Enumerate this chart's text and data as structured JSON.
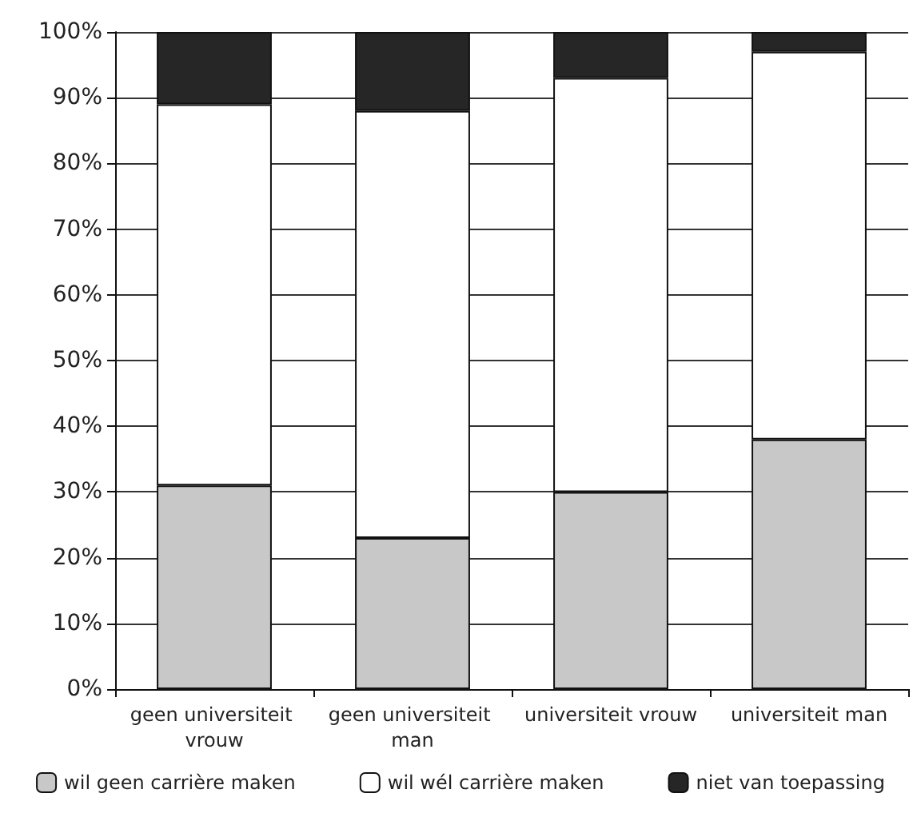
{
  "chart_data": {
    "type": "bar",
    "stacked": true,
    "categories": [
      "geen universiteit vrouw",
      "geen universiteit man",
      "universiteit vrouw",
      "universiteit man"
    ],
    "series": [
      {
        "name": "wil geen carrière maken",
        "color": "#c8c8c8",
        "values": [
          31,
          23,
          30,
          38
        ]
      },
      {
        "name": "wil wél carrière maken",
        "color": "#ffffff",
        "values": [
          58,
          65,
          63,
          59
        ]
      },
      {
        "name": "niet van toepassing",
        "color": "#262626",
        "values": [
          11,
          12,
          7,
          3
        ]
      }
    ],
    "ylim": [
      0,
      100
    ],
    "yticks": [
      {
        "value": 0,
        "label": "0%"
      },
      {
        "value": 10,
        "label": "10%"
      },
      {
        "value": 20,
        "label": "20%"
      },
      {
        "value": 30,
        "label": "30%"
      },
      {
        "value": 40,
        "label": "40%"
      },
      {
        "value": 50,
        "label": "50%"
      },
      {
        "value": 60,
        "label": "60%"
      },
      {
        "value": 70,
        "label": "70%"
      },
      {
        "value": 80,
        "label": "80%"
      },
      {
        "value": 90,
        "label": "90%"
      },
      {
        "value": 100,
        "label": "100%"
      }
    ],
    "grid": "y",
    "legend": "bottom"
  }
}
